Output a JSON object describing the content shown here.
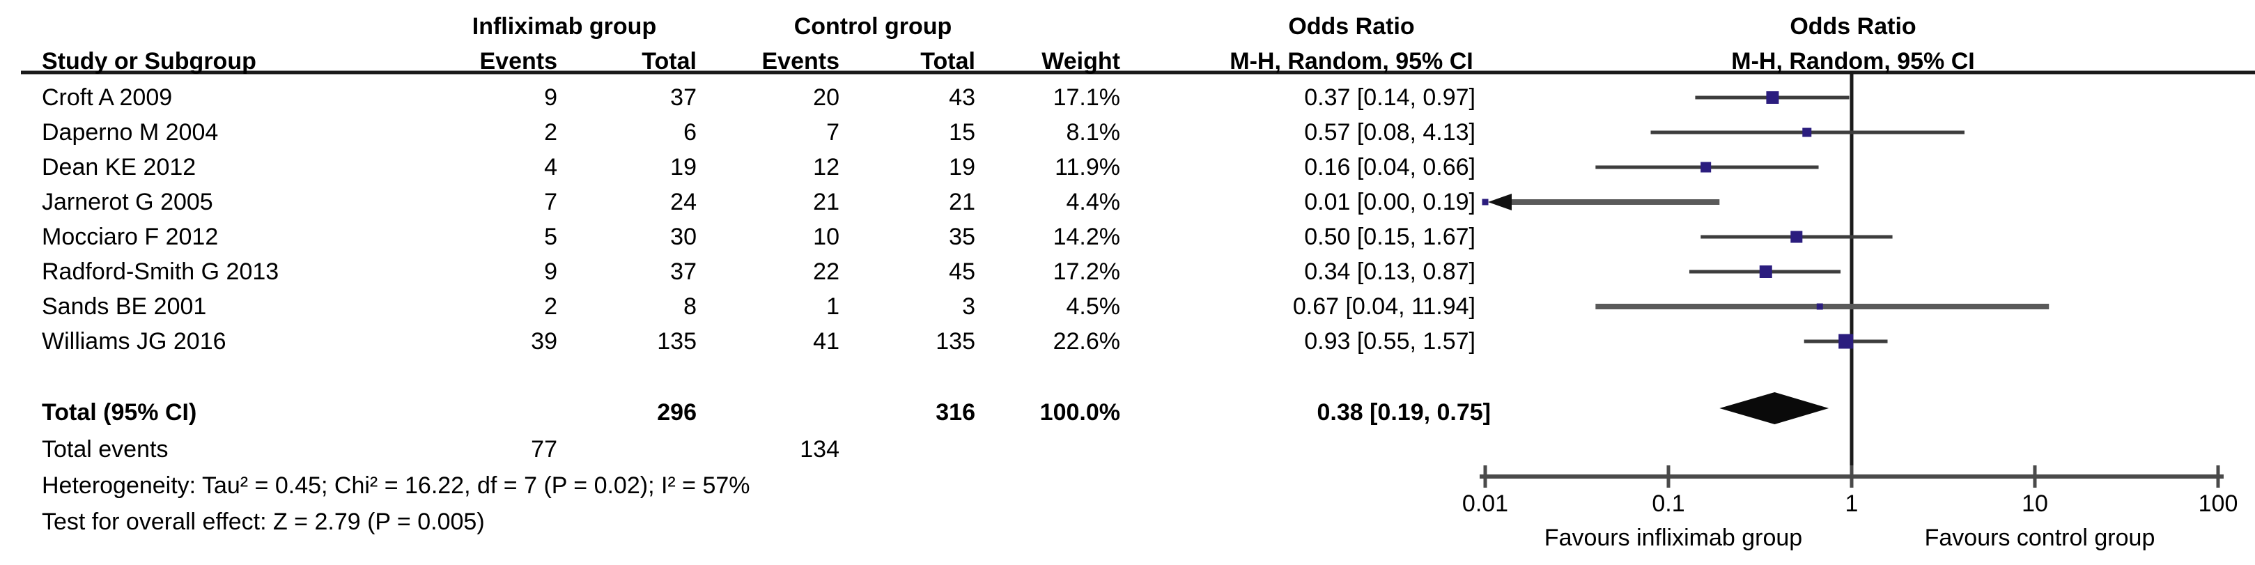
{
  "figure": {
    "headers": {
      "study": "Study or Subgroup",
      "group_ifx": "Infliximab group",
      "group_ctrl": "Control group",
      "events": "Events",
      "total": "Total",
      "weight": "Weight",
      "or_title": "Odds Ratio",
      "or_sub": "M-H, Random, 95% CI"
    }
  },
  "chart_data": {
    "type": "forest",
    "effect_measure": "Odds Ratio",
    "method": "M-H, Random, 95% CI",
    "x_scale": "log",
    "x_range": [
      0.01,
      100
    ],
    "x_ticks": [
      0.01,
      0.1,
      1,
      10,
      100
    ],
    "x_tick_labels": [
      "0.01",
      "0.1",
      "1",
      "10",
      "100"
    ],
    "favours_left": "Favours infliximab group",
    "favours_right": "Favours control group",
    "studies": [
      {
        "name": "Croft A 2009",
        "events_ifx": "9",
        "total_ifx": "37",
        "events_ctrl": "20",
        "total_ctrl": "43",
        "weight": "17.1%",
        "weight_pct": 17.1,
        "or_ci": "0.37 [0.14, 0.97]",
        "or": 0.37,
        "ci_low": 0.14,
        "ci_high": 0.97
      },
      {
        "name": "Daperno M 2004",
        "events_ifx": "2",
        "total_ifx": "6",
        "events_ctrl": "7",
        "total_ctrl": "15",
        "weight": "8.1%",
        "weight_pct": 8.1,
        "or_ci": "0.57 [0.08, 4.13]",
        "or": 0.57,
        "ci_low": 0.08,
        "ci_high": 4.13
      },
      {
        "name": "Dean KE 2012",
        "events_ifx": "4",
        "total_ifx": "19",
        "events_ctrl": "12",
        "total_ctrl": "19",
        "weight": "11.9%",
        "weight_pct": 11.9,
        "or_ci": "0.16 [0.04, 0.66]",
        "or": 0.16,
        "ci_low": 0.04,
        "ci_high": 0.66
      },
      {
        "name": "Jarnerot G 2005",
        "events_ifx": "7",
        "total_ifx": "24",
        "events_ctrl": "21",
        "total_ctrl": "21",
        "weight": "4.4%",
        "weight_pct": 4.4,
        "or_ci": "0.01 [0.00, 0.19]",
        "or": 0.01,
        "ci_low": null,
        "ci_high": 0.19,
        "arrow_left": true
      },
      {
        "name": "Mocciaro F 2012",
        "events_ifx": "5",
        "total_ifx": "30",
        "events_ctrl": "10",
        "total_ctrl": "35",
        "weight": "14.2%",
        "weight_pct": 14.2,
        "or_ci": "0.50 [0.15, 1.67]",
        "or": 0.5,
        "ci_low": 0.15,
        "ci_high": 1.67
      },
      {
        "name": "Radford-Smith G 2013",
        "events_ifx": "9",
        "total_ifx": "37",
        "events_ctrl": "22",
        "total_ctrl": "45",
        "weight": "17.2%",
        "weight_pct": 17.2,
        "or_ci": "0.34 [0.13, 0.87]",
        "or": 0.34,
        "ci_low": 0.13,
        "ci_high": 0.87
      },
      {
        "name": "Sands BE 2001",
        "events_ifx": "2",
        "total_ifx": "8",
        "events_ctrl": "1",
        "total_ctrl": "3",
        "weight": "4.5%",
        "weight_pct": 4.5,
        "or_ci": "0.67 [0.04, 11.94]",
        "or": 0.67,
        "ci_low": 0.04,
        "ci_high": 11.94
      },
      {
        "name": "Williams JG 2016",
        "events_ifx": "39",
        "total_ifx": "135",
        "events_ctrl": "41",
        "total_ctrl": "135",
        "weight": "22.6%",
        "weight_pct": 22.6,
        "or_ci": "0.93 [0.55, 1.57]",
        "or": 0.93,
        "ci_low": 0.55,
        "ci_high": 1.57
      }
    ],
    "total": {
      "label": "Total (95% CI)",
      "total_ifx": "296",
      "total_ctrl": "316",
      "weight": "100.0%",
      "or_ci": "0.38 [0.19, 0.75]",
      "or": 0.38,
      "ci_low": 0.19,
      "ci_high": 0.75
    },
    "total_events": {
      "label": "Total events",
      "events_ifx": "77",
      "events_ctrl": "134"
    },
    "heterogeneity": "Heterogeneity: Tau² = 0.45; Chi² = 16.22, df = 7 (P = 0.02); I² = 57%",
    "overall_effect": "Test for overall effect: Z = 2.79 (P = 0.005)"
  },
  "colors": {
    "marker": "#2b1d7e",
    "ci_line": "#3d3d3d",
    "ci_line_heavy": "#5a5a5a",
    "axis": "#4a4a4a",
    "rule": "#1a1a1a",
    "diamond": "#0a0a0a",
    "arrow": "#111111",
    "background": "#ffffff"
  }
}
